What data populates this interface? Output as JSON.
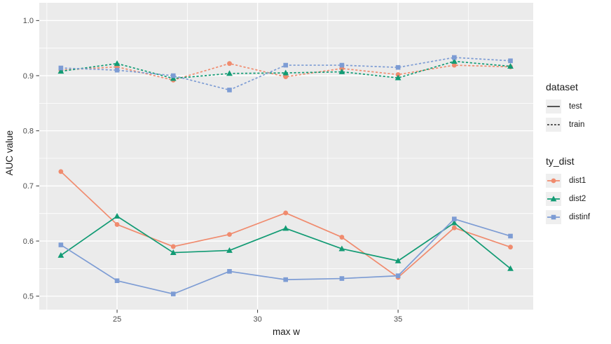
{
  "chart_data": {
    "type": "line",
    "title": "",
    "xlabel": "max w",
    "ylabel": "AUC value",
    "x": [
      23,
      25,
      27,
      29,
      31,
      33,
      35,
      37,
      39
    ],
    "xlim": [
      22.23,
      39.81
    ],
    "ylim": [
      0.4755,
      1.0322
    ],
    "x_ticks": [
      25,
      30,
      35
    ],
    "x_tick_labels": [
      "25",
      "30",
      "35"
    ],
    "x_minor_ticks": [
      22.5,
      27.5,
      32.5,
      37.5
    ],
    "y_ticks": [
      0.5,
      0.6,
      0.7,
      0.8,
      0.9,
      1.0
    ],
    "y_tick_labels": [
      "0.5",
      "0.6",
      "0.7",
      "0.8",
      "0.9",
      "1.0"
    ],
    "y_minor_ticks": [
      0.55,
      0.65,
      0.75,
      0.85,
      0.95
    ],
    "grid": true,
    "panel_bg": "#ebebeb",
    "grid_color": "#ffffff",
    "tick_label_color": "#4d4d4d",
    "tick_mark_color": "#333333",
    "series": [
      {
        "name": "dist1",
        "dataset": "test",
        "color": "#F08B6E",
        "marker": "circle",
        "linetype": "solid",
        "values": [
          0.726,
          0.63,
          0.59,
          0.612,
          0.651,
          0.607,
          0.534,
          0.624,
          0.589
        ]
      },
      {
        "name": "dist1",
        "dataset": "train",
        "color": "#F08B6E",
        "marker": "circle",
        "linetype": "dashed",
        "values": [
          0.91,
          0.916,
          0.892,
          0.922,
          0.898,
          0.913,
          0.902,
          0.919,
          0.916
        ]
      },
      {
        "name": "dist2",
        "dataset": "test",
        "color": "#129B74",
        "marker": "triangle",
        "linetype": "solid",
        "values": [
          0.574,
          0.645,
          0.579,
          0.583,
          0.623,
          0.586,
          0.564,
          0.633,
          0.55
        ]
      },
      {
        "name": "dist2",
        "dataset": "train",
        "color": "#129B74",
        "marker": "triangle",
        "linetype": "dashed",
        "values": [
          0.908,
          0.922,
          0.895,
          0.904,
          0.905,
          0.907,
          0.896,
          0.926,
          0.917
        ]
      },
      {
        "name": "distinf",
        "dataset": "test",
        "color": "#7D9CD4",
        "marker": "square",
        "linetype": "solid",
        "values": [
          0.593,
          0.528,
          0.504,
          0.545,
          0.53,
          0.532,
          0.537,
          0.64,
          0.609
        ]
      },
      {
        "name": "distinf",
        "dataset": "train",
        "color": "#7D9CD4",
        "marker": "square",
        "linetype": "dashed",
        "values": [
          0.914,
          0.91,
          0.9,
          0.874,
          0.919,
          0.919,
          0.915,
          0.933,
          0.927
        ]
      }
    ],
    "legend": {
      "position": "right",
      "dataset": {
        "title": "dataset",
        "entries": [
          {
            "label": "test",
            "linetype": "solid",
            "color": "#404040",
            "marker": "none"
          },
          {
            "label": "train",
            "linetype": "dashed",
            "color": "#404040",
            "marker": "none"
          }
        ]
      },
      "ty_dist": {
        "title": "ty_dist",
        "entries": [
          {
            "label": "dist1",
            "linetype": "solid",
            "color": "#F08B6E",
            "marker": "circle"
          },
          {
            "label": "dist2",
            "linetype": "solid",
            "color": "#129B74",
            "marker": "triangle"
          },
          {
            "label": "distinf",
            "linetype": "solid",
            "color": "#7D9CD4",
            "marker": "square"
          }
        ]
      }
    }
  }
}
